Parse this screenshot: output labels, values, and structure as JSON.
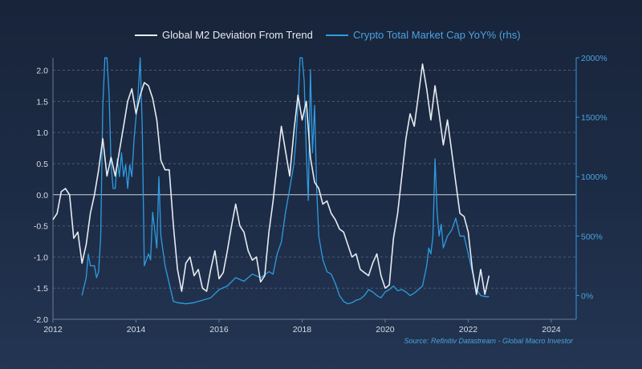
{
  "chart_data": {
    "type": "line",
    "title": "",
    "legend_position": "top",
    "grid": "horizontal dashed",
    "source": "Source: Refinitiv Datastream - Global Macro Investor",
    "x_axis": {
      "range": [
        2012,
        2024.6
      ],
      "tick_labels": [
        "2012",
        "2014",
        "2016",
        "2018",
        "2020",
        "2022",
        "2024"
      ]
    },
    "y_left": {
      "range": [
        -2.0,
        2.2
      ],
      "tick_labels": [
        "2.0",
        "1.5",
        "1.0",
        "0.5",
        "0.0",
        "-0.5",
        "-1.0",
        "-1.5",
        "-2.0"
      ]
    },
    "y_right": {
      "range": [
        -200,
        2000
      ],
      "tick_labels": [
        "2000%",
        "1500%",
        "1000%",
        "500%",
        "0%"
      ]
    },
    "series": [
      {
        "name": "Global M2 Deviation From Trend",
        "color": "#e6ebf2",
        "axis": "left",
        "x": [
          2012.0,
          2012.1,
          2012.2,
          2012.3,
          2012.4,
          2012.5,
          2012.6,
          2012.7,
          2012.8,
          2012.9,
          2013.0,
          2013.1,
          2013.2,
          2013.3,
          2013.4,
          2013.5,
          2013.6,
          2013.7,
          2013.8,
          2013.9,
          2014.0,
          2014.1,
          2014.2,
          2014.3,
          2014.4,
          2014.5,
          2014.6,
          2014.7,
          2014.8,
          2014.9,
          2015.0,
          2015.1,
          2015.2,
          2015.3,
          2015.4,
          2015.5,
          2015.6,
          2015.7,
          2015.8,
          2015.9,
          2016.0,
          2016.1,
          2016.2,
          2016.3,
          2016.4,
          2016.5,
          2016.6,
          2016.7,
          2016.8,
          2016.9,
          2017.0,
          2017.1,
          2017.2,
          2017.3,
          2017.4,
          2017.5,
          2017.6,
          2017.7,
          2017.8,
          2017.9,
          2018.0,
          2018.1,
          2018.2,
          2018.3,
          2018.4,
          2018.5,
          2018.6,
          2018.7,
          2018.8,
          2018.9,
          2019.0,
          2019.1,
          2019.2,
          2019.3,
          2019.4,
          2019.5,
          2019.6,
          2019.7,
          2019.8,
          2019.9,
          2020.0,
          2020.1,
          2020.2,
          2020.3,
          2020.4,
          2020.5,
          2020.6,
          2020.7,
          2020.8,
          2020.9,
          2021.0,
          2021.1,
          2021.2,
          2021.3,
          2021.4,
          2021.5,
          2021.6,
          2021.7,
          2021.8,
          2021.9,
          2022.0,
          2022.1,
          2022.2,
          2022.3,
          2022.4,
          2022.5
        ],
        "values": [
          -0.4,
          -0.3,
          0.05,
          0.1,
          0.0,
          -0.7,
          -0.6,
          -1.1,
          -0.8,
          -0.3,
          0.0,
          0.4,
          0.9,
          0.3,
          0.6,
          0.3,
          0.7,
          1.1,
          1.5,
          1.7,
          1.3,
          1.6,
          1.8,
          1.75,
          1.55,
          1.2,
          0.55,
          0.4,
          0.4,
          -0.5,
          -1.2,
          -1.55,
          -1.1,
          -1.0,
          -1.3,
          -1.2,
          -1.5,
          -1.55,
          -1.2,
          -0.9,
          -1.35,
          -1.25,
          -0.9,
          -0.5,
          -0.15,
          -0.5,
          -0.6,
          -0.9,
          -1.05,
          -1.0,
          -1.4,
          -1.3,
          -0.6,
          -0.1,
          0.5,
          1.1,
          0.7,
          0.3,
          1.0,
          1.6,
          1.2,
          1.5,
          0.6,
          0.2,
          0.1,
          -0.15,
          -0.1,
          -0.3,
          -0.4,
          -0.55,
          -0.6,
          -0.8,
          -1.0,
          -0.95,
          -1.2,
          -1.25,
          -1.3,
          -1.1,
          -0.95,
          -1.3,
          -1.5,
          -1.45,
          -0.7,
          -0.3,
          0.3,
          0.9,
          1.3,
          1.1,
          1.6,
          2.1,
          1.7,
          1.2,
          1.75,
          1.3,
          0.8,
          1.2,
          0.7,
          0.2,
          -0.3,
          -0.35,
          -0.6,
          -1.2,
          -1.6,
          -1.2,
          -1.6,
          -1.3
        ]
      },
      {
        "name": "Crypto Total Market Cap YoY% (rhs)",
        "color": "#2f9be0",
        "axis": "right",
        "x": [
          2012.7,
          2012.8,
          2012.85,
          2012.9,
          2013.0,
          2013.05,
          2013.1,
          2013.15,
          2013.2,
          2013.25,
          2013.3,
          2013.35,
          2013.4,
          2013.45,
          2013.5,
          2013.55,
          2013.6,
          2013.65,
          2013.7,
          2013.75,
          2013.8,
          2013.85,
          2013.9,
          2013.95,
          2014.0,
          2014.05,
          2014.1,
          2014.15,
          2014.2,
          2014.3,
          2014.35,
          2014.4,
          2014.5,
          2014.55,
          2014.6,
          2014.7,
          2014.8,
          2014.9,
          2015.0,
          2015.2,
          2015.4,
          2015.6,
          2015.8,
          2016.0,
          2016.2,
          2016.4,
          2016.6,
          2016.8,
          2017.0,
          2017.2,
          2017.3,
          2017.4,
          2017.5,
          2017.6,
          2017.7,
          2017.8,
          2017.85,
          2017.9,
          2017.95,
          2018.0,
          2018.05,
          2018.1,
          2018.15,
          2018.2,
          2018.25,
          2018.3,
          2018.35,
          2018.4,
          2018.5,
          2018.6,
          2018.7,
          2018.8,
          2018.9,
          2019.0,
          2019.1,
          2019.2,
          2019.3,
          2019.4,
          2019.5,
          2019.6,
          2019.7,
          2019.8,
          2019.9,
          2020.0,
          2020.1,
          2020.2,
          2020.3,
          2020.4,
          2020.5,
          2020.6,
          2020.7,
          2020.8,
          2020.9,
          2021.0,
          2021.05,
          2021.1,
          2021.15,
          2021.2,
          2021.25,
          2021.3,
          2021.35,
          2021.4,
          2021.5,
          2021.6,
          2021.7,
          2021.8,
          2021.9,
          2022.0,
          2022.1,
          2022.2,
          2022.3,
          2022.4,
          2022.5
        ],
        "values": [
          0,
          150,
          350,
          250,
          250,
          150,
          200,
          500,
          1600,
          2000,
          2000,
          1700,
          1100,
          900,
          900,
          1150,
          1000,
          1200,
          1000,
          1100,
          900,
          1100,
          1000,
          1300,
          1500,
          1700,
          2000,
          1400,
          250,
          350,
          300,
          700,
          400,
          1000,
          500,
          250,
          100,
          -50,
          -60,
          -70,
          -60,
          -40,
          -20,
          50,
          80,
          150,
          120,
          180,
          150,
          200,
          180,
          350,
          450,
          700,
          900,
          1100,
          1300,
          1600,
          2000,
          2000,
          1800,
          1200,
          800,
          1900,
          1200,
          1600,
          900,
          500,
          300,
          200,
          180,
          100,
          0,
          -50,
          -70,
          -60,
          -40,
          -30,
          0,
          50,
          30,
          0,
          -20,
          30,
          50,
          80,
          40,
          50,
          30,
          0,
          20,
          50,
          80,
          250,
          400,
          350,
          500,
          1150,
          700,
          500,
          600,
          400,
          500,
          550,
          650,
          500,
          500,
          350,
          200,
          50,
          0,
          -10,
          -10
        ]
      }
    ]
  }
}
